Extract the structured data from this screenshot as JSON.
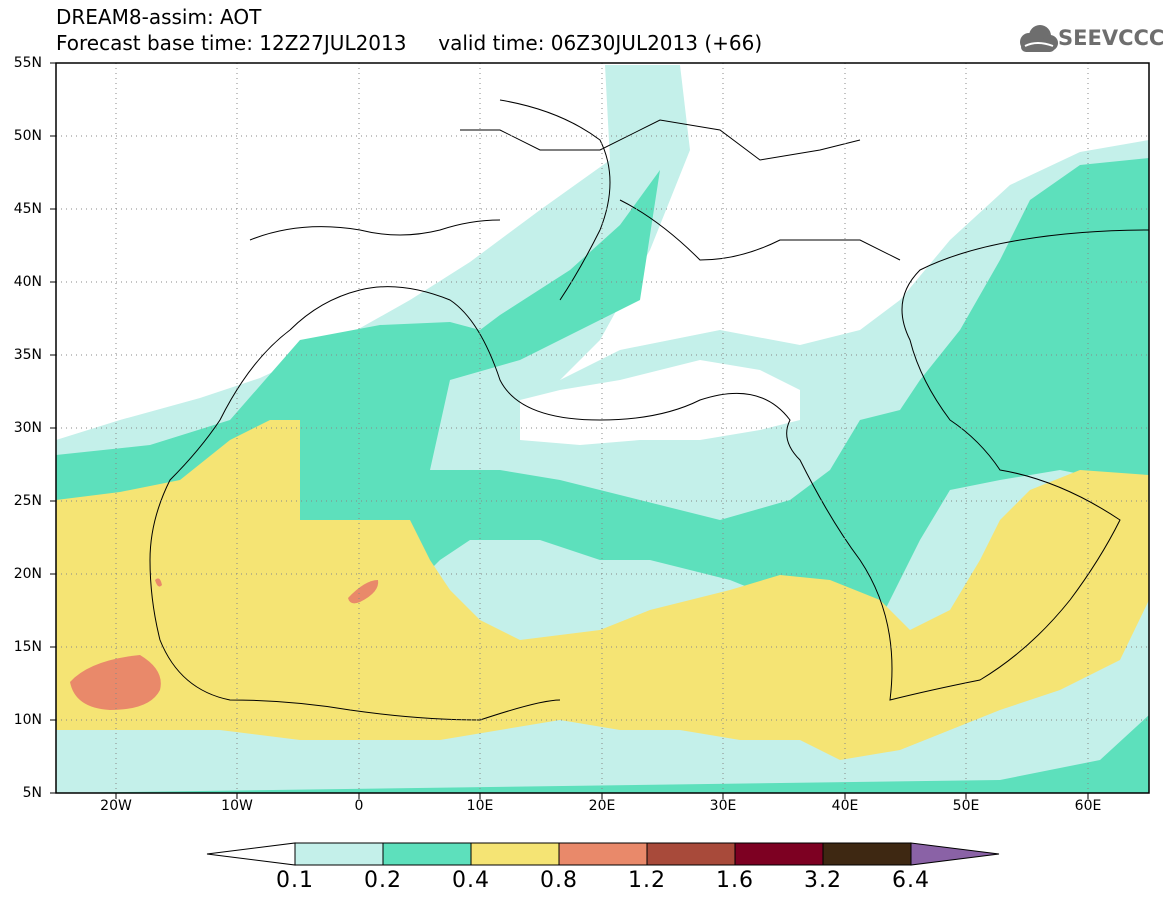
{
  "title": {
    "line1": "DREAM8-assim: AOT",
    "line2": "Forecast base time: 12Z27JUL2013     valid time: 06Z30JUL2013 (+66)"
  },
  "logo": {
    "text": "SEEVCCC",
    "icon": "cloud-icon"
  },
  "map": {
    "region": {
      "lon_range": [
        -25,
        65
      ],
      "lat_range": [
        5,
        55
      ]
    },
    "lat_ticks": [
      "55N",
      "50N",
      "45N",
      "40N",
      "35N",
      "30N",
      "25N",
      "20N",
      "15N",
      "10N",
      "5N"
    ],
    "lon_ticks": [
      "20W",
      "10W",
      "0",
      "10E",
      "20E",
      "30E",
      "40E",
      "50E",
      "60E"
    ],
    "grid": true
  },
  "colorbar": {
    "levels": [
      "0.1",
      "0.2",
      "0.4",
      "0.8",
      "1.2",
      "1.6",
      "3.2",
      "6.4"
    ],
    "colors": [
      "#ffffff",
      "#c4f0ea",
      "#5de0bc",
      "#f5e474",
      "#e9896a",
      "#a84a3a",
      "#7d0022",
      "#3e2812",
      "#8a62a6"
    ]
  }
}
